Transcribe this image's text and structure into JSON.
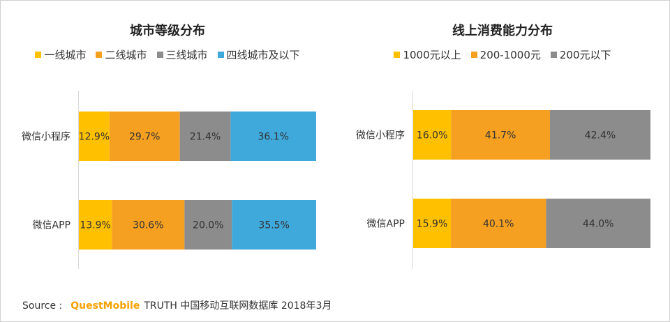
{
  "source": {
    "label": "Source :",
    "brand": "QuestMobile",
    "text": "TRUTH 中国移动互联网数据库 2018年3月"
  },
  "chart_data": [
    {
      "id": "left",
      "type": "bar",
      "stacked": true,
      "orientation": "horizontal",
      "percent": true,
      "title": "城市等级分布",
      "legend_placement": "top",
      "categories": [
        "微信小程序",
        "微信APP"
      ],
      "series": [
        {
          "name": "一线城市",
          "color": "#ffc000",
          "values": [
            12.9,
            13.9
          ]
        },
        {
          "name": "二线城市",
          "color": "#f5a021",
          "values": [
            29.7,
            30.6
          ]
        },
        {
          "name": "三线城市",
          "color": "#8c8c8c",
          "values": [
            21.4,
            20.0
          ]
        },
        {
          "name": "四线城市及以下",
          "color": "#3fa9dc",
          "values": [
            36.1,
            35.5
          ]
        }
      ],
      "grid": false
    },
    {
      "id": "right",
      "type": "bar",
      "stacked": true,
      "orientation": "horizontal",
      "percent": true,
      "title": "线上消费能力分布",
      "legend_placement": "top",
      "categories": [
        "微信小程序",
        "微信APP"
      ],
      "series": [
        {
          "name": "1000元以上",
          "color": "#ffc000",
          "values": [
            16.0,
            15.9
          ]
        },
        {
          "name": "200-1000元",
          "color": "#f5a021",
          "values": [
            41.7,
            40.1
          ]
        },
        {
          "name": "200元以下",
          "color": "#8c8c8c",
          "values": [
            42.4,
            44.0
          ]
        }
      ],
      "grid": false
    }
  ]
}
